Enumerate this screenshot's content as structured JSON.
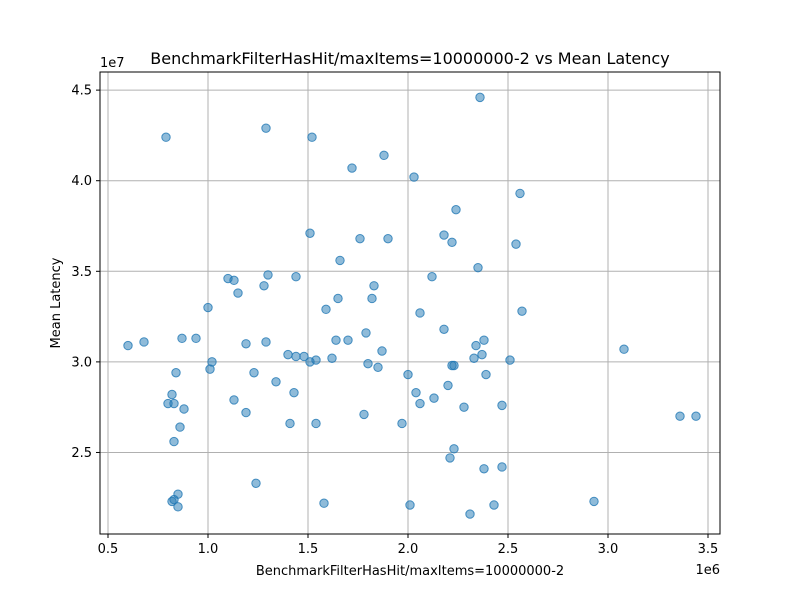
{
  "chart_data": {
    "type": "scatter",
    "title": "BenchmarkFilterHasHit/maxItems=10000000-2 vs Mean Latency",
    "xlabel": "BenchmarkFilterHasHit/maxItems=10000000-2",
    "ylabel": "Mean Latency",
    "x_offset_label": "1e6",
    "y_offset_label": "1e7",
    "xlim": [
      0.46,
      3.56
    ],
    "ylim": [
      2.05,
      4.6
    ],
    "xticks": [
      0.5,
      1.0,
      1.5,
      2.0,
      2.5,
      3.0,
      3.5
    ],
    "xtick_labels": [
      "0.5",
      "1.0",
      "1.5",
      "2.0",
      "2.5",
      "3.0",
      "3.5"
    ],
    "yticks": [
      2.5,
      3.0,
      3.5,
      4.0,
      4.5
    ],
    "ytick_labels": [
      "2.5",
      "3.0",
      "3.5",
      "4.0",
      "4.5"
    ],
    "grid": true,
    "color": "#1f77b4",
    "points": [
      [
        0.6,
        3.09
      ],
      [
        0.68,
        3.11
      ],
      [
        0.79,
        4.24
      ],
      [
        0.8,
        2.77
      ],
      [
        0.82,
        2.82
      ],
      [
        0.82,
        2.23
      ],
      [
        0.83,
        2.77
      ],
      [
        0.83,
        2.24
      ],
      [
        0.83,
        2.56
      ],
      [
        0.84,
        2.94
      ],
      [
        0.85,
        2.27
      ],
      [
        0.85,
        2.2
      ],
      [
        0.86,
        2.64
      ],
      [
        0.87,
        3.13
      ],
      [
        0.88,
        2.74
      ],
      [
        0.94,
        3.13
      ],
      [
        1.0,
        3.3
      ],
      [
        1.01,
        2.96
      ],
      [
        1.02,
        3.0
      ],
      [
        1.1,
        3.46
      ],
      [
        1.13,
        3.45
      ],
      [
        1.13,
        2.79
      ],
      [
        1.15,
        3.38
      ],
      [
        1.19,
        3.1
      ],
      [
        1.19,
        2.72
      ],
      [
        1.23,
        2.94
      ],
      [
        1.24,
        2.33
      ],
      [
        1.28,
        3.42
      ],
      [
        1.29,
        4.29
      ],
      [
        1.29,
        3.11
      ],
      [
        1.3,
        3.48
      ],
      [
        1.34,
        2.89
      ],
      [
        1.4,
        3.04
      ],
      [
        1.41,
        2.66
      ],
      [
        1.43,
        2.83
      ],
      [
        1.44,
        3.47
      ],
      [
        1.44,
        3.03
      ],
      [
        1.48,
        3.03
      ],
      [
        1.51,
        3.71
      ],
      [
        1.51,
        3.0
      ],
      [
        1.52,
        4.24
      ],
      [
        1.54,
        3.01
      ],
      [
        1.54,
        2.66
      ],
      [
        1.58,
        2.22
      ],
      [
        1.59,
        3.29
      ],
      [
        1.62,
        3.02
      ],
      [
        1.64,
        3.12
      ],
      [
        1.65,
        3.35
      ],
      [
        1.66,
        3.56
      ],
      [
        1.7,
        3.12
      ],
      [
        1.72,
        4.07
      ],
      [
        1.76,
        3.68
      ],
      [
        1.78,
        2.71
      ],
      [
        1.79,
        3.16
      ],
      [
        1.8,
        2.99
      ],
      [
        1.82,
        3.35
      ],
      [
        1.83,
        3.42
      ],
      [
        1.85,
        2.97
      ],
      [
        1.87,
        3.06
      ],
      [
        1.88,
        4.14
      ],
      [
        1.9,
        3.68
      ],
      [
        1.97,
        2.66
      ],
      [
        2.0,
        2.93
      ],
      [
        2.01,
        2.21
      ],
      [
        2.03,
        4.02
      ],
      [
        2.04,
        2.83
      ],
      [
        2.06,
        3.27
      ],
      [
        2.06,
        2.77
      ],
      [
        2.12,
        3.47
      ],
      [
        2.13,
        2.8
      ],
      [
        2.18,
        3.18
      ],
      [
        2.18,
        3.7
      ],
      [
        2.2,
        2.87
      ],
      [
        2.21,
        2.47
      ],
      [
        2.22,
        2.98
      ],
      [
        2.22,
        3.66
      ],
      [
        2.23,
        2.52
      ],
      [
        2.23,
        2.98
      ],
      [
        2.24,
        3.84
      ],
      [
        2.28,
        2.75
      ],
      [
        2.31,
        2.16
      ],
      [
        2.33,
        3.02
      ],
      [
        2.34,
        3.09
      ],
      [
        2.35,
        3.52
      ],
      [
        2.36,
        4.46
      ],
      [
        2.37,
        3.04
      ],
      [
        2.38,
        3.12
      ],
      [
        2.38,
        2.41
      ],
      [
        2.39,
        2.93
      ],
      [
        2.43,
        2.21
      ],
      [
        2.47,
        2.42
      ],
      [
        2.47,
        2.76
      ],
      [
        2.51,
        3.01
      ],
      [
        2.54,
        3.65
      ],
      [
        2.56,
        3.93
      ],
      [
        2.57,
        3.28
      ],
      [
        2.93,
        2.23
      ],
      [
        3.08,
        3.07
      ],
      [
        3.36,
        2.7
      ],
      [
        3.44,
        2.7
      ]
    ]
  }
}
